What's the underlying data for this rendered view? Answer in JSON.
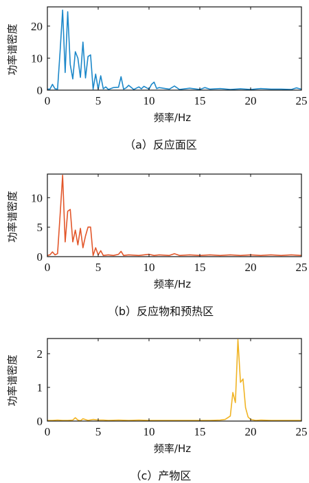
{
  "chart_data": [
    {
      "type": "line",
      "caption": "（a）反应面区",
      "xlabel": "频率/Hz",
      "ylabel": "功率谱密度",
      "xlim": [
        0,
        25
      ],
      "ylim": [
        0,
        26
      ],
      "xticks": [
        0,
        5,
        10,
        15,
        20,
        25
      ],
      "yticks": [
        0,
        10,
        20
      ],
      "grid": false,
      "color": "#1b87c9",
      "series": [
        {
          "x": [
            0,
            0.25,
            0.5,
            0.75,
            1.0,
            1.25,
            1.5,
            1.75,
            2.0,
            2.25,
            2.5,
            2.75,
            3.0,
            3.25,
            3.5,
            3.75,
            4.0,
            4.25,
            4.5,
            4.75,
            5.0,
            5.25,
            5.5,
            5.75,
            6.0,
            6.5,
            7.0,
            7.25,
            7.5,
            7.75,
            8.0,
            8.5,
            9.0,
            9.25,
            9.5,
            10.0,
            10.25,
            10.5,
            10.75,
            11.0,
            12.0,
            12.5,
            13.0,
            14.0,
            15.0,
            15.5,
            16.0,
            17.0,
            18.0,
            19.0,
            20.0,
            21.0,
            22.0,
            23.0,
            24.0,
            24.5,
            25.0
          ],
          "y": [
            0.3,
            0.3,
            1.8,
            0.4,
            0.3,
            12,
            25,
            5.5,
            24.5,
            8,
            3.5,
            12,
            10,
            4,
            15,
            3.8,
            10.5,
            11,
            0.3,
            5,
            0.3,
            4.5,
            0.4,
            1,
            0.2,
            0.8,
            0.9,
            4.2,
            0.3,
            0.7,
            1.5,
            0.2,
            1,
            0.4,
            1.2,
            0.3,
            1.8,
            2.5,
            0.5,
            0.8,
            0.3,
            1.3,
            0.2,
            0.6,
            0.2,
            0.8,
            0.3,
            0.5,
            0.2,
            0.4,
            0.2,
            0.5,
            0.3,
            0.3,
            0.2,
            0.7,
            0.3
          ]
        }
      ]
    },
    {
      "type": "line",
      "caption": "（b）反应物和预热区",
      "xlabel": "频率/Hz",
      "ylabel": "功率谱密度",
      "xlim": [
        0,
        25
      ],
      "ylim": [
        0,
        14
      ],
      "xticks": [
        0,
        5,
        10,
        15,
        20,
        25
      ],
      "yticks": [
        0,
        5,
        10
      ],
      "grid": false,
      "color": "#e2562a",
      "series": [
        {
          "x": [
            0,
            0.25,
            0.5,
            0.75,
            1.0,
            1.25,
            1.5,
            1.75,
            2.0,
            2.25,
            2.5,
            2.75,
            3.0,
            3.25,
            3.5,
            3.75,
            4.0,
            4.25,
            4.5,
            4.75,
            5.0,
            5.25,
            5.5,
            6.0,
            6.5,
            7.0,
            7.25,
            7.5,
            8.0,
            9.0,
            10.0,
            10.5,
            11.0,
            12.0,
            12.5,
            13.0,
            14.0,
            15.0,
            16.0,
            17.0,
            18.0,
            19.0,
            20.0,
            21.0,
            22.0,
            23.0,
            24.0,
            25.0
          ],
          "y": [
            0.2,
            0.3,
            0.8,
            0.3,
            0.5,
            7,
            13.8,
            2.5,
            7.7,
            8,
            2.5,
            4.5,
            2,
            4.8,
            1.5,
            3.5,
            5,
            5,
            0.2,
            1.5,
            0.3,
            1,
            0.2,
            0.3,
            0.2,
            0.4,
            0.9,
            0.2,
            0.3,
            0.2,
            0.4,
            0.2,
            0.3,
            0.2,
            0.5,
            0.2,
            0.3,
            0.2,
            0.3,
            0.2,
            0.3,
            0.2,
            0.3,
            0.2,
            0.3,
            0.2,
            0.3,
            0.2
          ]
        }
      ]
    },
    {
      "type": "line",
      "caption": "（c）产物区",
      "xlabel": "频率/Hz",
      "ylabel": "功率谱密度",
      "xlim": [
        0,
        25
      ],
      "ylim": [
        0,
        2.45
      ],
      "xticks": [
        0,
        5,
        10,
        15,
        20,
        25
      ],
      "yticks": [
        0,
        1,
        2
      ],
      "grid": false,
      "color": "#f0b323",
      "series": [
        {
          "x": [
            0,
            0.5,
            1.0,
            1.5,
            2.0,
            2.5,
            2.75,
            3.0,
            3.25,
            3.5,
            4.0,
            4.5,
            5.0,
            5.5,
            6.0,
            7.0,
            8.0,
            9.0,
            10.0,
            11.0,
            12.0,
            13.0,
            14.0,
            15.0,
            16.0,
            17.0,
            17.5,
            18.0,
            18.25,
            18.5,
            18.75,
            19.0,
            19.25,
            19.5,
            19.75,
            20.0,
            20.5,
            21.0,
            22.0,
            23.0,
            24.0,
            25.0
          ],
          "y": [
            0.02,
            0.02,
            0.03,
            0.02,
            0.02,
            0.03,
            0.1,
            0.03,
            0.01,
            0.07,
            0.02,
            0.05,
            0.03,
            0.03,
            0.02,
            0.03,
            0.02,
            0.03,
            0.02,
            0.02,
            0.02,
            0.02,
            0.02,
            0.02,
            0.02,
            0.03,
            0.05,
            0.15,
            0.85,
            0.55,
            2.42,
            1.15,
            1.25,
            0.4,
            0.12,
            0.05,
            0.02,
            0.03,
            0.02,
            0.02,
            0.02,
            0.02
          ]
        }
      ]
    }
  ]
}
